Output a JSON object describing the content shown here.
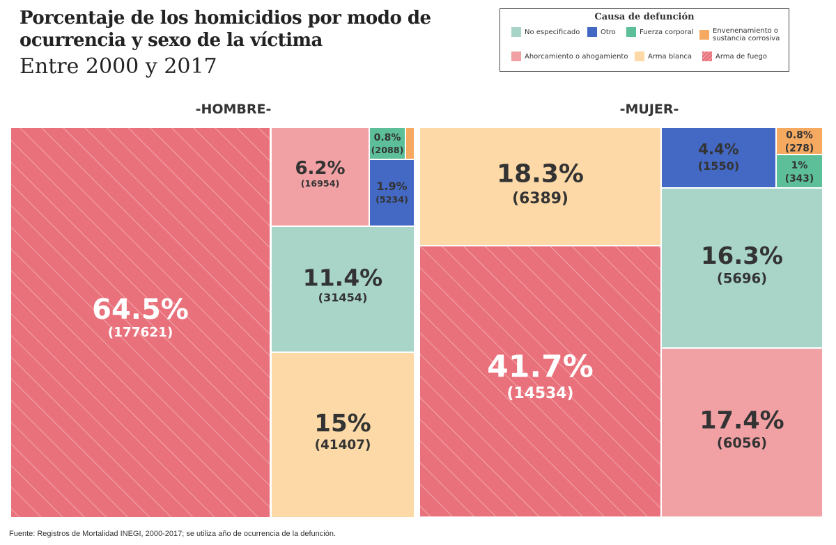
{
  "title": "Porcentaje de los homicidios por modo de ocurrencia y sexo de la víctima",
  "subtitle": "Entre 2000 y 2017",
  "legend": {
    "title": "Causa de defunción",
    "items": [
      {
        "label": "No especificado",
        "color": "#a8d5c8",
        "pattern": false
      },
      {
        "label": "Otro",
        "color": "#4469c4",
        "pattern": false
      },
      {
        "label": "Fuerza corporal",
        "color": "#5dbf9a",
        "pattern": false
      },
      {
        "label": "Envenenamiento o sustancia corrosiva",
        "color": "#f5a961",
        "pattern": false
      },
      {
        "label": "Ahorcamiento o ahogamiento",
        "color": "#f1a1a4",
        "pattern": false
      },
      {
        "label": "Arma blanca",
        "color": "#fcd9a6",
        "pattern": false
      },
      {
        "label": "Arma de fuego",
        "color": "#e9717b",
        "pattern": true
      }
    ]
  },
  "source": "Fuente: Registros de Mortalidad INEGI, 2000-2017; se utiliza año de ocurrencia de la defunción.",
  "chart_data": [
    {
      "type": "treemap",
      "title": "-HOMBRE-",
      "cells": [
        {
          "category": "Arma de fuego",
          "percent": "64.5%",
          "count": "(177621)",
          "value": 177621
        },
        {
          "category": "Arma blanca",
          "percent": "15%",
          "count": "(41407)",
          "value": 41407
        },
        {
          "category": "No especificado",
          "percent": "11.4%",
          "count": "(31454)",
          "value": 31454
        },
        {
          "category": "Ahorcamiento o ahogamiento",
          "percent": "6.2%",
          "count": "(16954)",
          "value": 16954
        },
        {
          "category": "Otro",
          "percent": "1.9%",
          "count": "(5234)",
          "value": 5234
        },
        {
          "category": "Fuerza corporal",
          "percent": "0.8%",
          "count": "(2088)",
          "value": 2088
        },
        {
          "category": "Envenenamiento o sustancia corrosiva",
          "percent": "",
          "count": "",
          "value": 600
        }
      ]
    },
    {
      "type": "treemap",
      "title": "-MUJER-",
      "cells": [
        {
          "category": "Arma de fuego",
          "percent": "41.7%",
          "count": "(14534)",
          "value": 14534
        },
        {
          "category": "Arma blanca",
          "percent": "18.3%",
          "count": "(6389)",
          "value": 6389
        },
        {
          "category": "Ahorcamiento o ahogamiento",
          "percent": "17.4%",
          "count": "(6056)",
          "value": 6056
        },
        {
          "category": "No especificado",
          "percent": "16.3%",
          "count": "(5696)",
          "value": 5696
        },
        {
          "category": "Otro",
          "percent": "4.4%",
          "count": "(1550)",
          "value": 1550
        },
        {
          "category": "Fuerza corporal",
          "percent": "1%",
          "count": "(343)",
          "value": 343
        },
        {
          "category": "Envenenamiento o sustancia corrosiva",
          "percent": "0.8%",
          "count": "(278)",
          "value": 278
        }
      ]
    }
  ]
}
